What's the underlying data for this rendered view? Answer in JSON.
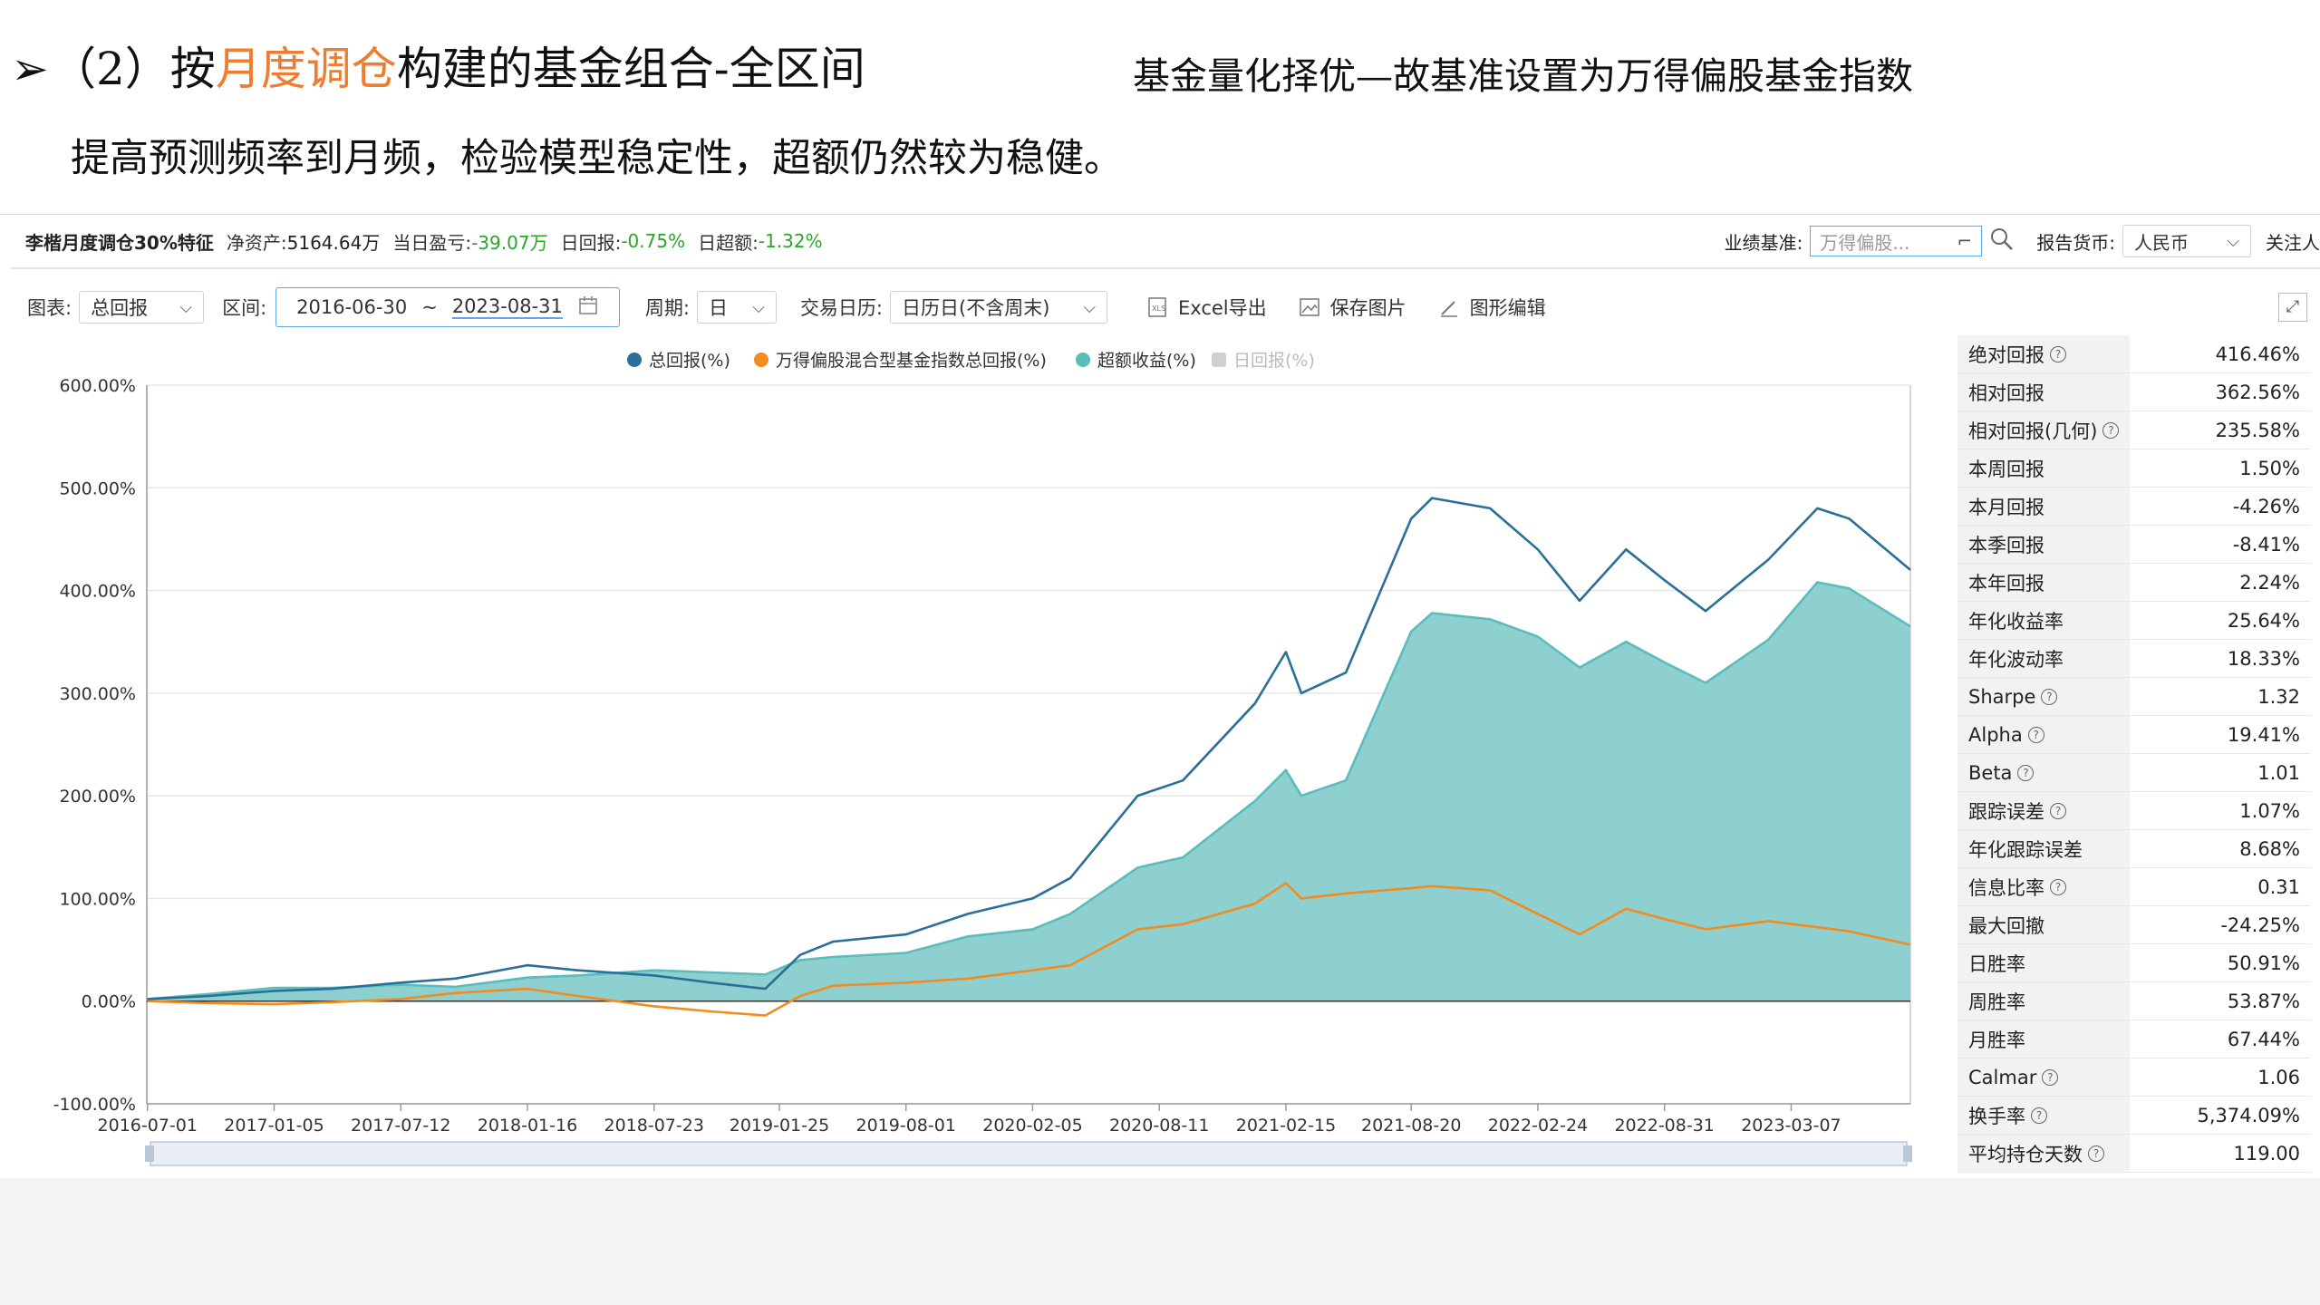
{
  "slide": {
    "title_prefix": "（2）按",
    "title_highlight": "月度调仓",
    "title_suffix": "构建的基金组合-全区间",
    "subtitle_right": "基金量化择优—故基准设置为万得偏股基金指数",
    "line2": "提高预测频率到月频，检验模型稳定性，超额仍然较为稳健。",
    "bullet": "➢"
  },
  "portfolio_bar": {
    "name": "李楷月度调仓30%特征",
    "nav_label": "净资产:",
    "nav_value": "5164.64万",
    "pnl_label": "当日盈亏:",
    "pnl_value": "-39.07万",
    "daily_return_label": "日回报:",
    "daily_return_value": "-0.75%",
    "daily_excess_label": "日超额:",
    "daily_excess_value": "-1.32%",
    "benchmark_label": "业绩基准:",
    "benchmark_value": "万得偏股...",
    "currency_label": "报告货币:",
    "currency_value": "人民币",
    "follow_label": "关注人"
  },
  "toolbar": {
    "chart_label": "图表:",
    "chart_value": "总回报",
    "interval_label": "区间:",
    "start_date": "2016-06-30",
    "tilde": "~",
    "end_date": "2023-08-31",
    "period_label": "周期:",
    "period_value": "日",
    "calendar_label": "交易日历:",
    "calendar_value": "日历日(不含周末)",
    "excel_label": "Excel导出",
    "save_label": "保存图片",
    "edit_label": "图形编辑"
  },
  "colors": {
    "total": "#2A6F97",
    "benchmark": "#F28C1E",
    "excess": "#5BBCBC",
    "excess_fill": "#8ED0D0",
    "daily": "#D0D0D0"
  },
  "chart_data": {
    "type": "line",
    "legend": [
      "总回报(%)",
      "万得偏股混合型基金指数总回报(%)",
      "超额收益(%)",
      "日回报(%)"
    ],
    "legend_position": "top-center",
    "ylim": [
      -100,
      600
    ],
    "yticks": [
      "600.00%",
      "500.00%",
      "400.00%",
      "300.00%",
      "200.00%",
      "100.00%",
      "0.00%",
      "-100.00%"
    ],
    "ytick_values": [
      600,
      500,
      400,
      300,
      200,
      100,
      0,
      -100
    ],
    "x_range": [
      "2016-06-30",
      "2023-08-31"
    ],
    "xticks": [
      "2016-07-01",
      "2017-01-05",
      "2017-07-12",
      "2018-01-16",
      "2018-07-23",
      "2019-01-25",
      "2019-08-01",
      "2020-02-05",
      "2020-08-11",
      "2021-02-15",
      "2021-08-20",
      "2022-02-24",
      "2022-08-31",
      "2023-03-07"
    ],
    "grid": "horizontal",
    "series": [
      {
        "name": "总回报(%)",
        "x": [
          "2016-07-01",
          "2016-10-01",
          "2017-01-05",
          "2017-04-01",
          "2017-07-12",
          "2017-10-01",
          "2018-01-16",
          "2018-04-01",
          "2018-07-23",
          "2018-10-15",
          "2019-01-04",
          "2019-02-25",
          "2019-04-15",
          "2019-08-01",
          "2019-11-01",
          "2020-02-05",
          "2020-04-01",
          "2020-07-10",
          "2020-09-15",
          "2020-12-31",
          "2021-02-15",
          "2021-03-10",
          "2021-05-15",
          "2021-08-20",
          "2021-09-20",
          "2021-12-15",
          "2022-02-24",
          "2022-04-27",
          "2022-07-05",
          "2022-08-31",
          "2022-10-31",
          "2023-02-01",
          "2023-04-15",
          "2023-06-01",
          "2023-08-31"
        ],
        "values": [
          2,
          5,
          10,
          12,
          18,
          22,
          35,
          30,
          25,
          18,
          12,
          45,
          58,
          65,
          85,
          100,
          120,
          200,
          215,
          290,
          340,
          300,
          320,
          470,
          490,
          480,
          440,
          390,
          440,
          410,
          380,
          430,
          480,
          470,
          420
        ]
      },
      {
        "name": "万得偏股混合型基金指数总回报(%)",
        "x": [
          "2016-07-01",
          "2016-10-01",
          "2017-01-05",
          "2017-04-01",
          "2017-07-12",
          "2017-10-01",
          "2018-01-16",
          "2018-04-01",
          "2018-07-23",
          "2018-10-15",
          "2019-01-04",
          "2019-02-25",
          "2019-04-15",
          "2019-08-01",
          "2019-11-01",
          "2020-02-05",
          "2020-04-01",
          "2020-07-10",
          "2020-09-15",
          "2020-12-31",
          "2021-02-15",
          "2021-03-10",
          "2021-05-15",
          "2021-08-20",
          "2021-09-20",
          "2021-12-15",
          "2022-02-24",
          "2022-04-27",
          "2022-07-05",
          "2022-08-31",
          "2022-10-31",
          "2023-02-01",
          "2023-04-15",
          "2023-06-01",
          "2023-08-31"
        ],
        "values": [
          0,
          -2,
          -3,
          -1,
          2,
          8,
          12,
          5,
          -5,
          -10,
          -14,
          5,
          15,
          18,
          22,
          30,
          35,
          70,
          75,
          95,
          115,
          100,
          105,
          110,
          112,
          108,
          85,
          65,
          90,
          80,
          70,
          78,
          72,
          68,
          55
        ]
      },
      {
        "name": "超额收益(%)",
        "x": [
          "2016-07-01",
          "2016-10-01",
          "2017-01-05",
          "2017-04-01",
          "2017-07-12",
          "2017-10-01",
          "2018-01-16",
          "2018-04-01",
          "2018-07-23",
          "2018-10-15",
          "2019-01-04",
          "2019-02-25",
          "2019-04-15",
          "2019-08-01",
          "2019-11-01",
          "2020-02-05",
          "2020-04-01",
          "2020-07-10",
          "2020-09-15",
          "2020-12-31",
          "2021-02-15",
          "2021-03-10",
          "2021-05-15",
          "2021-08-20",
          "2021-09-20",
          "2021-12-15",
          "2022-02-24",
          "2022-04-27",
          "2022-07-05",
          "2022-08-31",
          "2022-10-31",
          "2023-02-01",
          "2023-04-15",
          "2023-06-01",
          "2023-08-31"
        ],
        "values": [
          2,
          7,
          13,
          13,
          16,
          14,
          23,
          25,
          30,
          28,
          26,
          40,
          43,
          47,
          63,
          70,
          85,
          130,
          140,
          195,
          225,
          200,
          215,
          360,
          378,
          372,
          355,
          325,
          350,
          330,
          310,
          352,
          408,
          402,
          365
        ]
      }
    ]
  },
  "stats": [
    {
      "label": "绝对回报",
      "value": "416.46%",
      "help": true
    },
    {
      "label": "相对回报",
      "value": "362.56%",
      "help": false
    },
    {
      "label": "相对回报(几何)",
      "value": "235.58%",
      "help": true
    },
    {
      "label": "本周回报",
      "value": "1.50%",
      "help": false
    },
    {
      "label": "本月回报",
      "value": "-4.26%",
      "help": false
    },
    {
      "label": "本季回报",
      "value": "-8.41%",
      "help": false
    },
    {
      "label": "本年回报",
      "value": "2.24%",
      "help": false
    },
    {
      "label": "年化收益率",
      "value": "25.64%",
      "help": false
    },
    {
      "label": "年化波动率",
      "value": "18.33%",
      "help": false
    },
    {
      "label": "Sharpe",
      "value": "1.32",
      "help": true
    },
    {
      "label": "Alpha",
      "value": "19.41%",
      "help": true
    },
    {
      "label": "Beta",
      "value": "1.01",
      "help": true
    },
    {
      "label": "跟踪误差",
      "value": "1.07%",
      "help": true
    },
    {
      "label": "年化跟踪误差",
      "value": "8.68%",
      "help": false
    },
    {
      "label": "信息比率",
      "value": "0.31",
      "help": true
    },
    {
      "label": "最大回撤",
      "value": "-24.25%",
      "help": false
    },
    {
      "label": "日胜率",
      "value": "50.91%",
      "help": false
    },
    {
      "label": "周胜率",
      "value": "53.87%",
      "help": false
    },
    {
      "label": "月胜率",
      "value": "67.44%",
      "help": false
    },
    {
      "label": "Calmar",
      "value": "1.06",
      "help": true
    },
    {
      "label": "换手率",
      "value": "5,374.09%",
      "help": true
    },
    {
      "label": "平均持仓天数",
      "value": "119.00",
      "help": true
    }
  ]
}
